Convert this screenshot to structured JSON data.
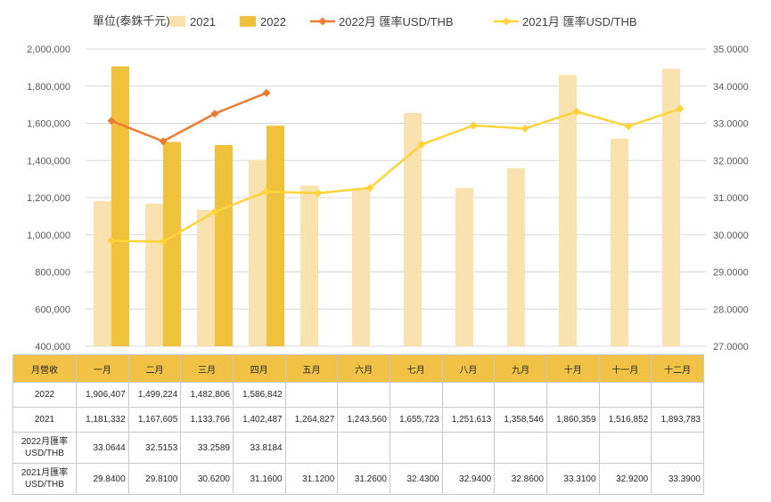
{
  "chart_data": {
    "type": "bar",
    "unit_label": "單位(泰銖千元)",
    "categories": [
      "一月",
      "二月",
      "三月",
      "四月",
      "五月",
      "六月",
      "七月",
      "八月",
      "九月",
      "十月",
      "十一月",
      "十二月"
    ],
    "series": [
      {
        "name": "2021",
        "kind": "bar",
        "axis": "left",
        "color": "#f9e2ad",
        "values": [
          1181332,
          1167605,
          1133766,
          1402487,
          1264827,
          1243560,
          1655723,
          1251613,
          1358546,
          1860359,
          1516852,
          1893783
        ]
      },
      {
        "name": "2022",
        "kind": "bar",
        "axis": "left",
        "color": "#f0c23c",
        "values": [
          1906407,
          1499224,
          1482806,
          1586842,
          null,
          null,
          null,
          null,
          null,
          null,
          null,
          null
        ]
      },
      {
        "name": "2022月 匯率USD/THB",
        "kind": "line",
        "axis": "right",
        "color": "#ec7c30",
        "values": [
          33.0644,
          32.5153,
          33.2589,
          33.8184,
          null,
          null,
          null,
          null,
          null,
          null,
          null,
          null
        ]
      },
      {
        "name": "2021月 匯率USD/THB",
        "kind": "line",
        "axis": "right",
        "color": "#ffd33a",
        "values": [
          29.84,
          29.81,
          30.62,
          31.16,
          31.12,
          31.26,
          32.43,
          32.94,
          32.86,
          33.31,
          32.92,
          33.39
        ]
      }
    ],
    "left_axis": {
      "min": 400000,
      "max": 2000000,
      "step": 200000,
      "ticks": [
        "400,000",
        "600,000",
        "800,000",
        "1,000,000",
        "1,200,000",
        "1,400,000",
        "1,600,000",
        "1,800,000",
        "2,000,000"
      ]
    },
    "right_axis": {
      "min": 27,
      "max": 35,
      "step": 1,
      "ticks": [
        "27.0000",
        "28.0000",
        "29.0000",
        "30.0000",
        "31.0000",
        "32.0000",
        "33.0000",
        "34.0000",
        "35.0000"
      ]
    },
    "grid": true,
    "legend_position": "top"
  },
  "table": {
    "header": [
      "月營收",
      "一月",
      "二月",
      "三月",
      "四月",
      "五月",
      "六月",
      "七月",
      "八月",
      "九月",
      "十月",
      "十一月",
      "十二月"
    ],
    "rows": [
      {
        "label": "2022",
        "tall": false,
        "cells": [
          "1,906,407",
          "1,499,224",
          "1,482,806",
          "1,586,842",
          "",
          "",
          "",
          "",
          "",
          "",
          "",
          ""
        ]
      },
      {
        "label": "2021",
        "tall": false,
        "cells": [
          "1,181,332",
          "1,167,605",
          "1,133,766",
          "1,402,487",
          "1,264,827",
          "1,243,560",
          "1,655,723",
          "1,251,613",
          "1,358,546",
          "1,860,359",
          "1,516,852",
          "1,893,783"
        ]
      },
      {
        "label": "2022月匯率 USD/THB",
        "tall": true,
        "cells": [
          "33.0644",
          "32.5153",
          "33.2589",
          "33.8184",
          "",
          "",
          "",
          "",
          "",
          "",
          "",
          ""
        ]
      },
      {
        "label": "2021月匯率 USD/THB",
        "tall": true,
        "cells": [
          "29.8400",
          "29.8100",
          "30.6200",
          "31.1600",
          "31.1200",
          "31.2600",
          "32.4300",
          "32.9400",
          "32.8600",
          "33.3100",
          "32.9200",
          "33.3900"
        ]
      }
    ]
  }
}
